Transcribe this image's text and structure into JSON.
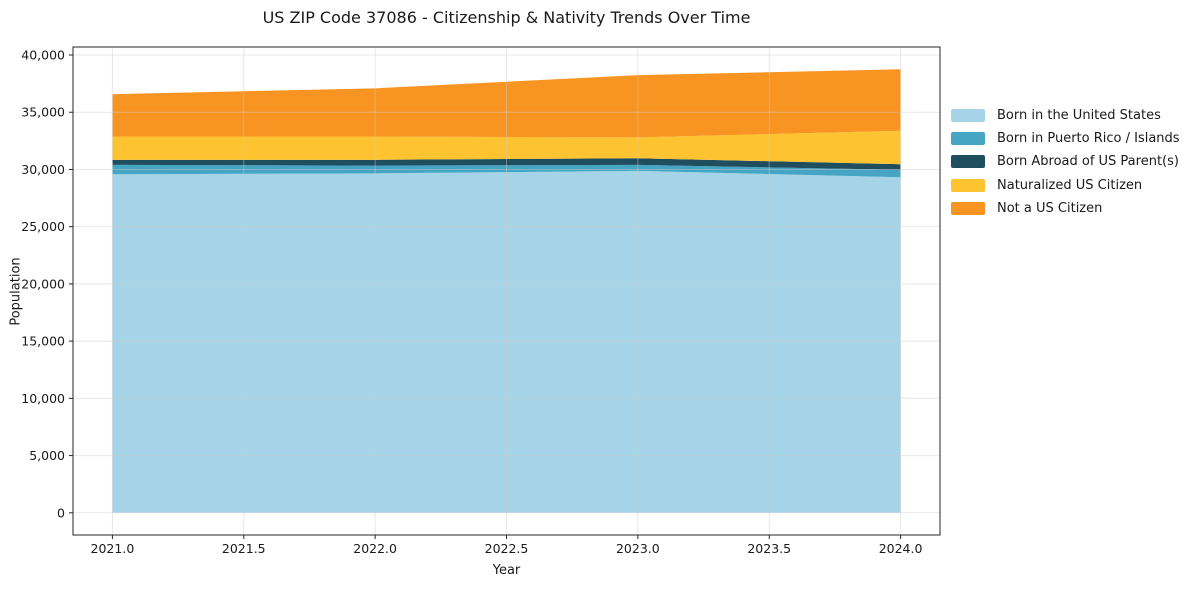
{
  "chart_data": {
    "type": "area",
    "stacked": true,
    "title": "US ZIP Code 37086 - Citizenship & Nativity Trends Over Time",
    "xlabel": "Year",
    "ylabel": "Population",
    "x": [
      2021,
      2022,
      2023,
      2024
    ],
    "series": [
      {
        "name": "Born in the United States",
        "color": "#a5d4e8",
        "values": [
          29580,
          29660,
          29880,
          29320
        ]
      },
      {
        "name": "Born in Puerto Rico / Islands",
        "color": "#45a5c3",
        "values": [
          820,
          680,
          520,
          650
        ]
      },
      {
        "name": "Born Abroad of US Parent(s)",
        "color": "#1f4e5f",
        "values": [
          440,
          500,
          580,
          490
        ]
      },
      {
        "name": "Naturalized US Citizen",
        "color": "#fdc330",
        "values": [
          2040,
          2040,
          1820,
          2920
        ]
      },
      {
        "name": "Not a US Citizen",
        "color": "#f89522",
        "values": [
          3690,
          4210,
          5440,
          5380
        ]
      }
    ],
    "stack_totals": [
      36570,
      37090,
      38240,
      38760
    ],
    "xlim": [
      2020.85,
      2024.15
    ],
    "ylim": [
      -1940,
      40700
    ],
    "x_ticks": [
      2021.0,
      2021.5,
      2022.0,
      2022.5,
      2023.0,
      2023.5,
      2024.0
    ],
    "x_tick_labels": [
      "2021.0",
      "2021.5",
      "2022.0",
      "2022.5",
      "2023.0",
      "2023.5",
      "2024.0"
    ],
    "y_ticks": [
      0,
      5000,
      10000,
      15000,
      20000,
      25000,
      30000,
      35000,
      40000
    ],
    "y_tick_labels": [
      "0",
      "5,000",
      "10,000",
      "15,000",
      "20,000",
      "25,000",
      "30,000",
      "35,000",
      "40,000"
    ],
    "grid": true,
    "grid_color": "#cbcbcb",
    "spine_color": "#262626",
    "legend_position": "right-outside"
  }
}
